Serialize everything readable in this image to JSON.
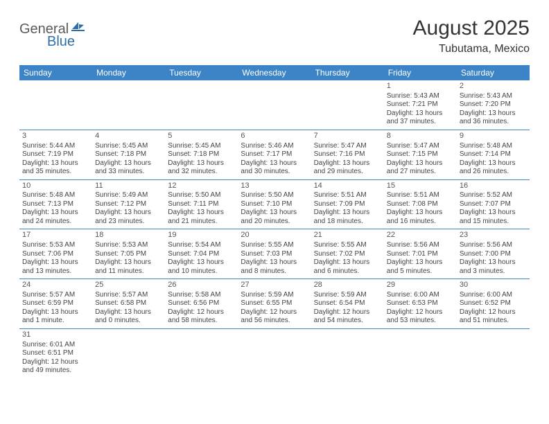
{
  "logo": {
    "general": "General",
    "blue": "Blue"
  },
  "title": "August 2025",
  "location": "Tubutama, Mexico",
  "header_bg": "#3d84c6",
  "dayNames": [
    "Sunday",
    "Monday",
    "Tuesday",
    "Wednesday",
    "Thursday",
    "Friday",
    "Saturday"
  ],
  "weeks": [
    [
      null,
      null,
      null,
      null,
      null,
      {
        "n": "1",
        "sr": "Sunrise: 5:43 AM",
        "ss": "Sunset: 7:21 PM",
        "dl": "Daylight: 13 hours and 37 minutes."
      },
      {
        "n": "2",
        "sr": "Sunrise: 5:43 AM",
        "ss": "Sunset: 7:20 PM",
        "dl": "Daylight: 13 hours and 36 minutes."
      }
    ],
    [
      {
        "n": "3",
        "sr": "Sunrise: 5:44 AM",
        "ss": "Sunset: 7:19 PM",
        "dl": "Daylight: 13 hours and 35 minutes."
      },
      {
        "n": "4",
        "sr": "Sunrise: 5:45 AM",
        "ss": "Sunset: 7:18 PM",
        "dl": "Daylight: 13 hours and 33 minutes."
      },
      {
        "n": "5",
        "sr": "Sunrise: 5:45 AM",
        "ss": "Sunset: 7:18 PM",
        "dl": "Daylight: 13 hours and 32 minutes."
      },
      {
        "n": "6",
        "sr": "Sunrise: 5:46 AM",
        "ss": "Sunset: 7:17 PM",
        "dl": "Daylight: 13 hours and 30 minutes."
      },
      {
        "n": "7",
        "sr": "Sunrise: 5:47 AM",
        "ss": "Sunset: 7:16 PM",
        "dl": "Daylight: 13 hours and 29 minutes."
      },
      {
        "n": "8",
        "sr": "Sunrise: 5:47 AM",
        "ss": "Sunset: 7:15 PM",
        "dl": "Daylight: 13 hours and 27 minutes."
      },
      {
        "n": "9",
        "sr": "Sunrise: 5:48 AM",
        "ss": "Sunset: 7:14 PM",
        "dl": "Daylight: 13 hours and 26 minutes."
      }
    ],
    [
      {
        "n": "10",
        "sr": "Sunrise: 5:48 AM",
        "ss": "Sunset: 7:13 PM",
        "dl": "Daylight: 13 hours and 24 minutes."
      },
      {
        "n": "11",
        "sr": "Sunrise: 5:49 AM",
        "ss": "Sunset: 7:12 PM",
        "dl": "Daylight: 13 hours and 23 minutes."
      },
      {
        "n": "12",
        "sr": "Sunrise: 5:50 AM",
        "ss": "Sunset: 7:11 PM",
        "dl": "Daylight: 13 hours and 21 minutes."
      },
      {
        "n": "13",
        "sr": "Sunrise: 5:50 AM",
        "ss": "Sunset: 7:10 PM",
        "dl": "Daylight: 13 hours and 20 minutes."
      },
      {
        "n": "14",
        "sr": "Sunrise: 5:51 AM",
        "ss": "Sunset: 7:09 PM",
        "dl": "Daylight: 13 hours and 18 minutes."
      },
      {
        "n": "15",
        "sr": "Sunrise: 5:51 AM",
        "ss": "Sunset: 7:08 PM",
        "dl": "Daylight: 13 hours and 16 minutes."
      },
      {
        "n": "16",
        "sr": "Sunrise: 5:52 AM",
        "ss": "Sunset: 7:07 PM",
        "dl": "Daylight: 13 hours and 15 minutes."
      }
    ],
    [
      {
        "n": "17",
        "sr": "Sunrise: 5:53 AM",
        "ss": "Sunset: 7:06 PM",
        "dl": "Daylight: 13 hours and 13 minutes."
      },
      {
        "n": "18",
        "sr": "Sunrise: 5:53 AM",
        "ss": "Sunset: 7:05 PM",
        "dl": "Daylight: 13 hours and 11 minutes."
      },
      {
        "n": "19",
        "sr": "Sunrise: 5:54 AM",
        "ss": "Sunset: 7:04 PM",
        "dl": "Daylight: 13 hours and 10 minutes."
      },
      {
        "n": "20",
        "sr": "Sunrise: 5:55 AM",
        "ss": "Sunset: 7:03 PM",
        "dl": "Daylight: 13 hours and 8 minutes."
      },
      {
        "n": "21",
        "sr": "Sunrise: 5:55 AM",
        "ss": "Sunset: 7:02 PM",
        "dl": "Daylight: 13 hours and 6 minutes."
      },
      {
        "n": "22",
        "sr": "Sunrise: 5:56 AM",
        "ss": "Sunset: 7:01 PM",
        "dl": "Daylight: 13 hours and 5 minutes."
      },
      {
        "n": "23",
        "sr": "Sunrise: 5:56 AM",
        "ss": "Sunset: 7:00 PM",
        "dl": "Daylight: 13 hours and 3 minutes."
      }
    ],
    [
      {
        "n": "24",
        "sr": "Sunrise: 5:57 AM",
        "ss": "Sunset: 6:59 PM",
        "dl": "Daylight: 13 hours and 1 minute."
      },
      {
        "n": "25",
        "sr": "Sunrise: 5:57 AM",
        "ss": "Sunset: 6:58 PM",
        "dl": "Daylight: 13 hours and 0 minutes."
      },
      {
        "n": "26",
        "sr": "Sunrise: 5:58 AM",
        "ss": "Sunset: 6:56 PM",
        "dl": "Daylight: 12 hours and 58 minutes."
      },
      {
        "n": "27",
        "sr": "Sunrise: 5:59 AM",
        "ss": "Sunset: 6:55 PM",
        "dl": "Daylight: 12 hours and 56 minutes."
      },
      {
        "n": "28",
        "sr": "Sunrise: 5:59 AM",
        "ss": "Sunset: 6:54 PM",
        "dl": "Daylight: 12 hours and 54 minutes."
      },
      {
        "n": "29",
        "sr": "Sunrise: 6:00 AM",
        "ss": "Sunset: 6:53 PM",
        "dl": "Daylight: 12 hours and 53 minutes."
      },
      {
        "n": "30",
        "sr": "Sunrise: 6:00 AM",
        "ss": "Sunset: 6:52 PM",
        "dl": "Daylight: 12 hours and 51 minutes."
      }
    ],
    [
      {
        "n": "31",
        "sr": "Sunrise: 6:01 AM",
        "ss": "Sunset: 6:51 PM",
        "dl": "Daylight: 12 hours and 49 minutes."
      },
      null,
      null,
      null,
      null,
      null,
      null
    ]
  ]
}
